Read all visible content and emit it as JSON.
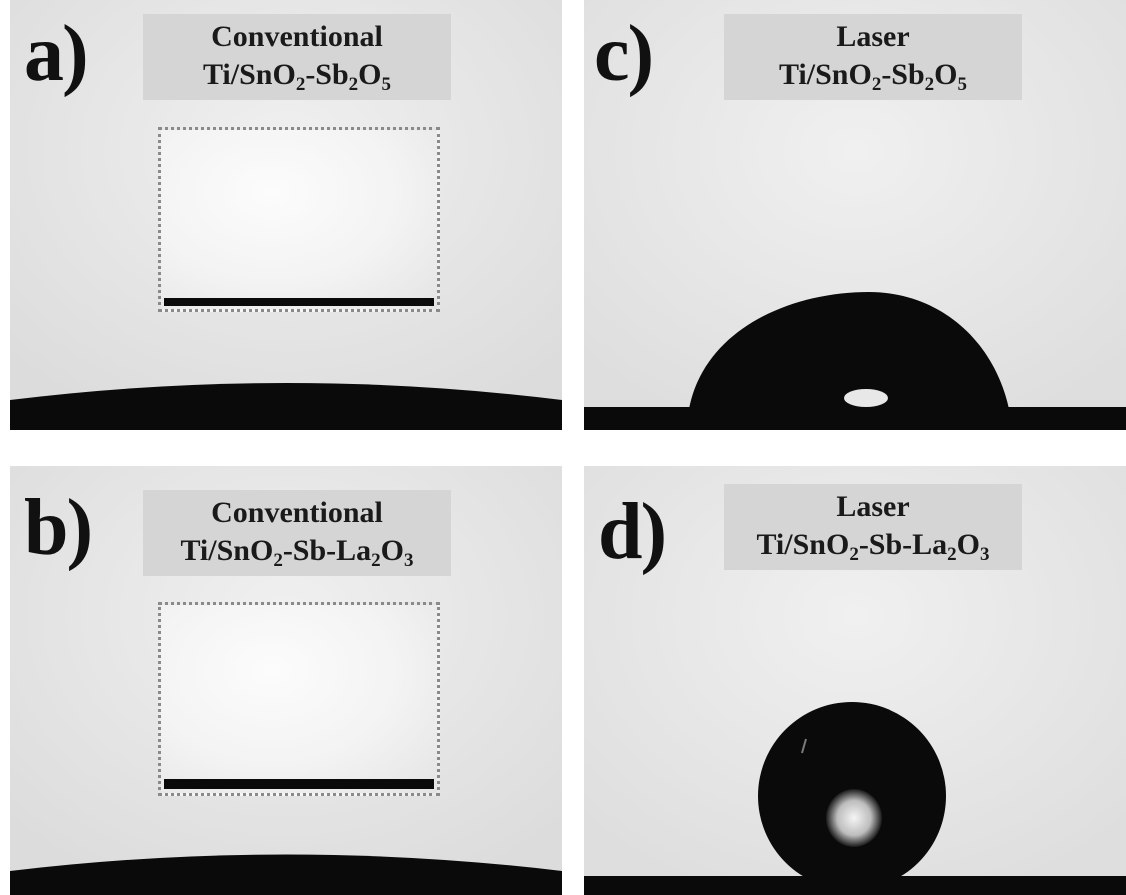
{
  "panels": {
    "a": {
      "letter": "a)",
      "label_line1": "Conventional",
      "label_line2": {
        "pre": "Ti/SnO",
        "s1": "2",
        "mid": "-Sb",
        "s2": "2",
        "mid2": "O",
        "s3": "5",
        "post": ""
      }
    },
    "b": {
      "letter": "b)",
      "label_line1": "Conventional",
      "label_line2": {
        "pre": "Ti/SnO",
        "s1": "2",
        "mid": "-Sb-La",
        "s2": "2",
        "mid2": "O",
        "s3": "3",
        "post": ""
      }
    },
    "c": {
      "letter": "c)",
      "label_line1": "Laser",
      "label_line2": {
        "pre": "Ti/SnO",
        "s1": "2",
        "mid": "-Sb",
        "s2": "2",
        "mid2": "O",
        "s3": "5",
        "post": ""
      }
    },
    "d": {
      "letter": "d)",
      "label_line1": "Laser",
      "label_line2": {
        "pre": "Ti/SnO",
        "s1": "2",
        "mid": "-Sb-La",
        "s2": "2",
        "mid2": "O",
        "s3": "3",
        "post": ""
      }
    }
  },
  "colors": {
    "background": "#e6e6e6",
    "label_box": "#d5d5d5",
    "droplet": "#0a0a0a",
    "inset_border": "#8a8a8a"
  }
}
